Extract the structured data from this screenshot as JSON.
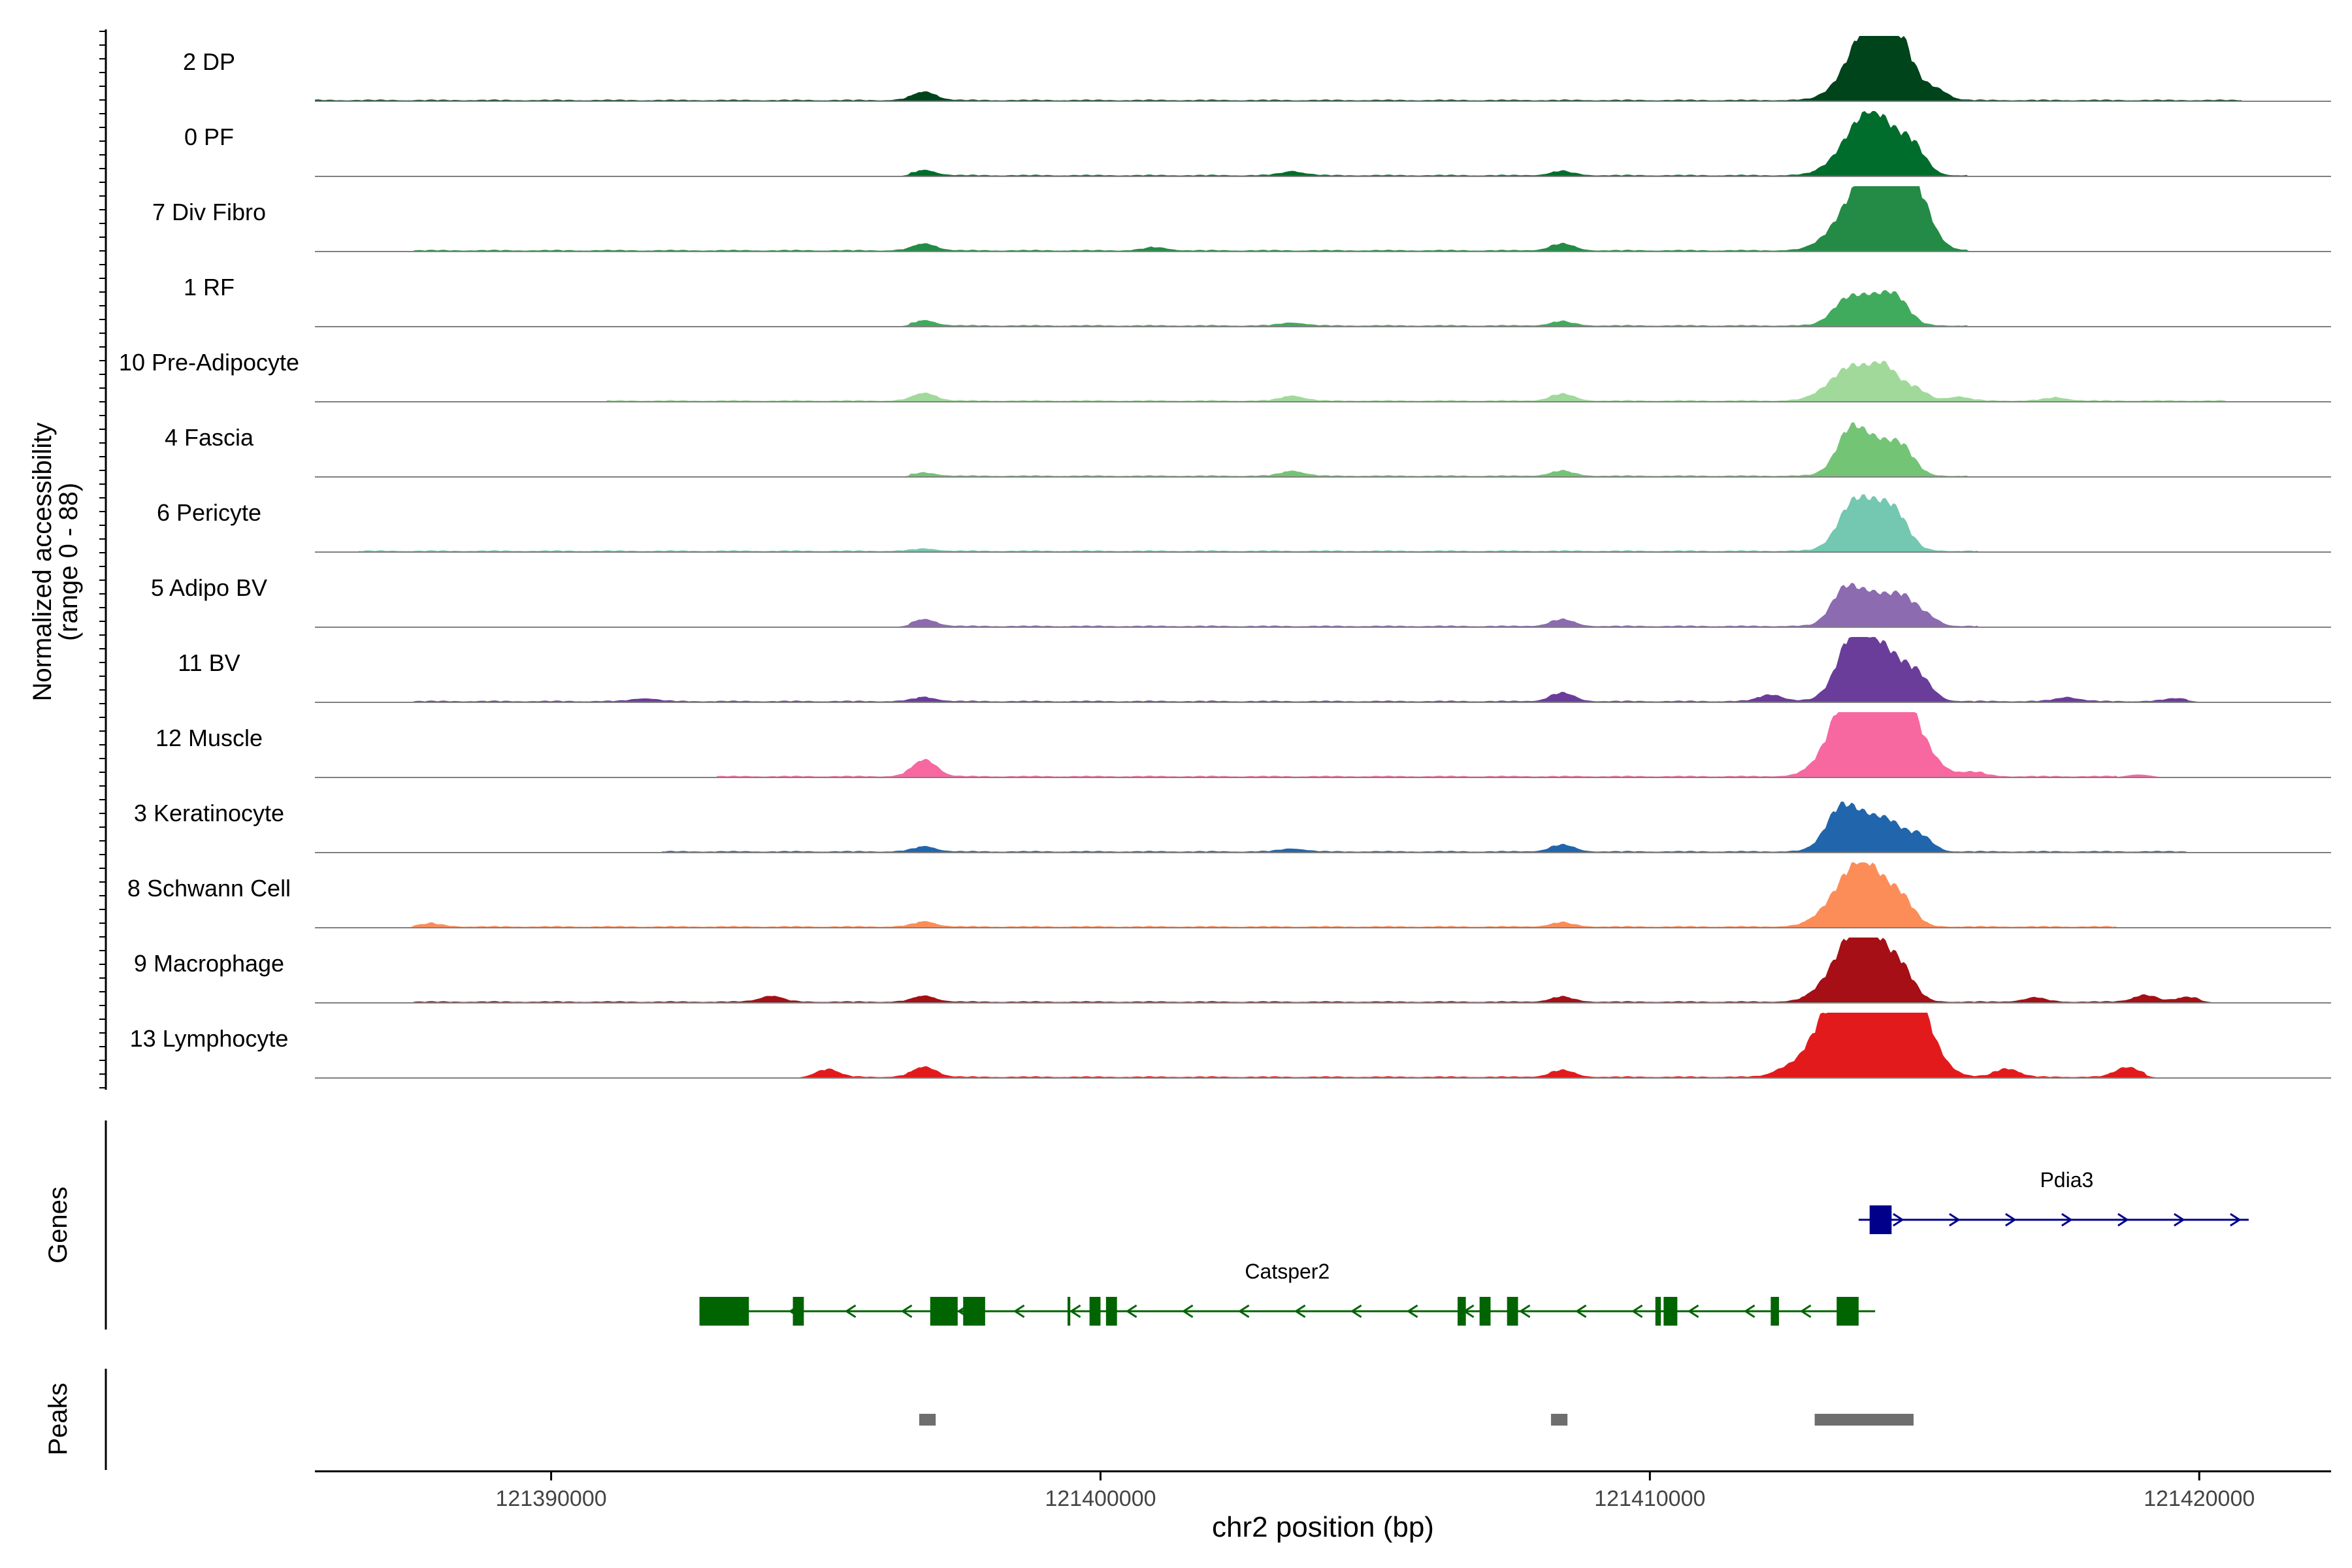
{
  "chart_data": {
    "type": "area",
    "ylabel": "Normalized accessibility",
    "ylabel_range": "(range 0 - 88)",
    "ylim": [
      0,
      88
    ],
    "xlabel": "chr2 position (bp)",
    "xlim": [
      121385700,
      121422400
    ],
    "xticks": [
      {
        "value": 121390000,
        "label": "121390000"
      },
      {
        "value": 121400000,
        "label": "121400000"
      },
      {
        "value": 121410000,
        "label": "121410000"
      },
      {
        "value": 121420000,
        "label": "121420000"
      }
    ],
    "genes_label": "Genes",
    "peaks_label": "Peaks",
    "tracks": [
      {
        "name": "2 DP",
        "color": "#00441b",
        "bg": [
          121385700,
          121420800
        ],
        "peaks": [
          [
            121414200,
            66
          ],
          [
            121413900,
            40
          ],
          [
            121414600,
            30
          ],
          [
            121415200,
            12
          ],
          [
            121396800,
            10
          ]
        ]
      },
      {
        "name": "0 PF",
        "color": "#006d2c",
        "bg": [
          121396500,
          121415800
        ],
        "peaks": [
          [
            121414200,
            50
          ],
          [
            121413800,
            38
          ],
          [
            121414800,
            25
          ],
          [
            121396800,
            6
          ],
          [
            121403500,
            5
          ],
          [
            121408400,
            5
          ]
        ]
      },
      {
        "name": "7 Div Fibro",
        "color": "#238b45",
        "bg": [
          121387500,
          121415800
        ],
        "peaks": [
          [
            121414200,
            68
          ],
          [
            121414600,
            45
          ],
          [
            121413700,
            40
          ],
          [
            121414900,
            28
          ],
          [
            121396800,
            8
          ],
          [
            121408400,
            8
          ],
          [
            121401000,
            4
          ]
        ]
      },
      {
        "name": "1 RF",
        "color": "#41ab5d",
        "bg": [
          121396500,
          121415800
        ],
        "peaks": [
          [
            121414000,
            35
          ],
          [
            121414500,
            22
          ],
          [
            121413500,
            15
          ],
          [
            121396800,
            6
          ],
          [
            121403500,
            4
          ],
          [
            121408400,
            5
          ]
        ]
      },
      {
        "name": "10 Pre-Adipocyte",
        "color": "#a1d99b",
        "bg": [
          121391000,
          121420500
        ],
        "peaks": [
          [
            121413700,
            42
          ],
          [
            121414300,
            30
          ],
          [
            121414800,
            15
          ],
          [
            121396800,
            9
          ],
          [
            121408400,
            8
          ],
          [
            121403500,
            6
          ],
          [
            121415600,
            5
          ],
          [
            121417400,
            4
          ]
        ]
      },
      {
        "name": "4 Fascia",
        "color": "#74c476",
        "bg": [
          121396500,
          121415800
        ],
        "peaks": [
          [
            121414000,
            45
          ],
          [
            121413600,
            30
          ],
          [
            121414600,
            25
          ],
          [
            121396800,
            4
          ],
          [
            121403500,
            6
          ],
          [
            121408400,
            6
          ]
        ]
      },
      {
        "name": "6 Pericyte",
        "color": "#74c7b0",
        "bg": [
          121386500,
          121416000
        ],
        "peaks": [
          [
            121414000,
            58
          ],
          [
            121414500,
            25
          ],
          [
            121413600,
            20
          ],
          [
            121396800,
            3
          ]
        ]
      },
      {
        "name": "5 Adipo BV",
        "color": "#8c6bb1",
        "bg": [
          121396500,
          121416000
        ],
        "peaks": [
          [
            121414000,
            40
          ],
          [
            121413500,
            28
          ],
          [
            121414600,
            24
          ],
          [
            121415000,
            12
          ],
          [
            121396800,
            8
          ],
          [
            121408400,
            8
          ]
        ]
      },
      {
        "name": "11 BV",
        "color": "#6a3d9a",
        "bg": [
          121387500,
          121419800
        ],
        "peaks": [
          [
            121413900,
            55
          ],
          [
            121414400,
            35
          ],
          [
            121413600,
            30
          ],
          [
            121414900,
            18
          ],
          [
            121408400,
            10
          ],
          [
            121412200,
            8
          ],
          [
            121396800,
            5
          ],
          [
            121391700,
            4
          ],
          [
            121417600,
            5
          ],
          [
            121419600,
            4
          ]
        ]
      },
      {
        "name": "12 Muscle",
        "color": "#f768a1",
        "bg": [
          121393000,
          121418500
        ],
        "peaks": [
          [
            121413900,
            82
          ],
          [
            121414300,
            78
          ],
          [
            121413600,
            45
          ],
          [
            121414700,
            40
          ],
          [
            121396800,
            20
          ],
          [
            121415900,
            5
          ],
          [
            121418900,
            4
          ]
        ]
      },
      {
        "name": "3 Keratinocyte",
        "color": "#2166ac",
        "bg": [
          121392000,
          121419800
        ],
        "peaks": [
          [
            121413800,
            46
          ],
          [
            121413400,
            25
          ],
          [
            121414400,
            22
          ],
          [
            121414900,
            20
          ],
          [
            121396800,
            6
          ],
          [
            121408400,
            8
          ],
          [
            121403500,
            4
          ]
        ]
      },
      {
        "name": "8 Schwann Cell",
        "color": "#fc8d59",
        "bg": [
          121387500,
          121418500
        ],
        "peaks": [
          [
            121414000,
            55
          ],
          [
            121413600,
            35
          ],
          [
            121414600,
            22
          ],
          [
            121396800,
            6
          ],
          [
            121408400,
            5
          ],
          [
            121387800,
            4
          ]
        ]
      },
      {
        "name": "9 Macrophage",
        "color": "#a50f15",
        "bg": [
          121387500,
          121420000
        ],
        "peaks": [
          [
            121414000,
            68
          ],
          [
            121413600,
            40
          ],
          [
            121414600,
            25
          ],
          [
            121396800,
            7
          ],
          [
            121408400,
            6
          ],
          [
            121394000,
            7
          ],
          [
            121419000,
            8
          ],
          [
            121419800,
            6
          ],
          [
            121417000,
            5
          ]
        ]
      },
      {
        "name": "13 Lymphocyte",
        "color": "#e31a1c",
        "bg": [
          121395000,
          121419000
        ],
        "peaks": [
          [
            121414700,
            85
          ],
          [
            121414100,
            70
          ],
          [
            121413300,
            65
          ],
          [
            121413800,
            50
          ],
          [
            121414400,
            45
          ],
          [
            121395000,
            10
          ],
          [
            121396800,
            12
          ],
          [
            121408400,
            8
          ],
          [
            121416500,
            10
          ],
          [
            121418700,
            12
          ],
          [
            121412400,
            6
          ]
        ]
      }
    ],
    "genes": [
      {
        "name": "Pdia3",
        "strand": "+",
        "start": 121413800,
        "end": 121420900,
        "color": "#00008b",
        "exons": [
          [
            121414000,
            121414400
          ]
        ]
      },
      {
        "name": "Catsper2",
        "strand": "-",
        "start": 121392700,
        "end": 121414100,
        "color": "#006400",
        "exons": [
          [
            121392700,
            121393600
          ],
          [
            121394400,
            121394600
          ],
          [
            121396900,
            121397400
          ],
          [
            121397500,
            121397900
          ],
          [
            121399400,
            121399450
          ],
          [
            121399800,
            121400000
          ],
          [
            121400100,
            121400300
          ],
          [
            121406500,
            121406650
          ],
          [
            121406900,
            121407100
          ],
          [
            121407400,
            121407600
          ],
          [
            121410100,
            121410200
          ],
          [
            121410250,
            121410500
          ],
          [
            121412200,
            121412350
          ],
          [
            121413400,
            121413800
          ]
        ]
      }
    ],
    "peak_regions": [
      [
        121396700,
        121397000
      ],
      [
        121408200,
        121408500
      ],
      [
        121413000,
        121414800
      ]
    ]
  }
}
